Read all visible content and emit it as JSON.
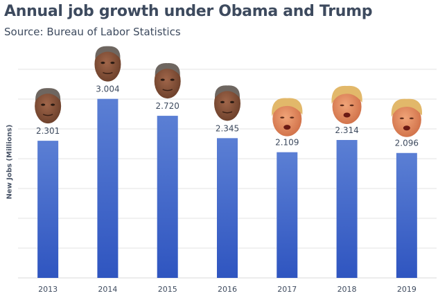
{
  "chart_data": {
    "type": "bar",
    "title": "Annual job growth under Obama and Trump",
    "subtitle": "Source: Bureau of Labor Statistics",
    "xlabel": "",
    "ylabel": "New Jobs (Millions)",
    "categories": [
      "2013",
      "2014",
      "2015",
      "2016",
      "2017",
      "2018",
      "2019"
    ],
    "values": [
      2.301,
      3.004,
      2.72,
      2.345,
      2.109,
      2.314,
      2.096
    ],
    "data_labels": [
      "2.301",
      "3.004",
      "2.720",
      "2.345",
      "2.109",
      "2.314",
      "2.096"
    ],
    "president": [
      "Obama",
      "Obama",
      "Obama",
      "Obama",
      "Trump",
      "Trump",
      "Trump"
    ],
    "ylim": [
      0,
      3.5
    ],
    "gridlines": [
      0,
      0.5,
      1.0,
      1.5,
      2.0,
      2.5,
      3.0,
      3.5
    ],
    "grid": true,
    "show_y_tick_labels": false,
    "colors": {
      "bar_top": "#5b7fd4",
      "bar_bottom": "#2f55c0",
      "text": "#3d4a5e",
      "grid": "#e3e3e3"
    },
    "face_icons": {
      "Obama": "obama-face-icon",
      "Trump": "trump-face-icon"
    }
  }
}
